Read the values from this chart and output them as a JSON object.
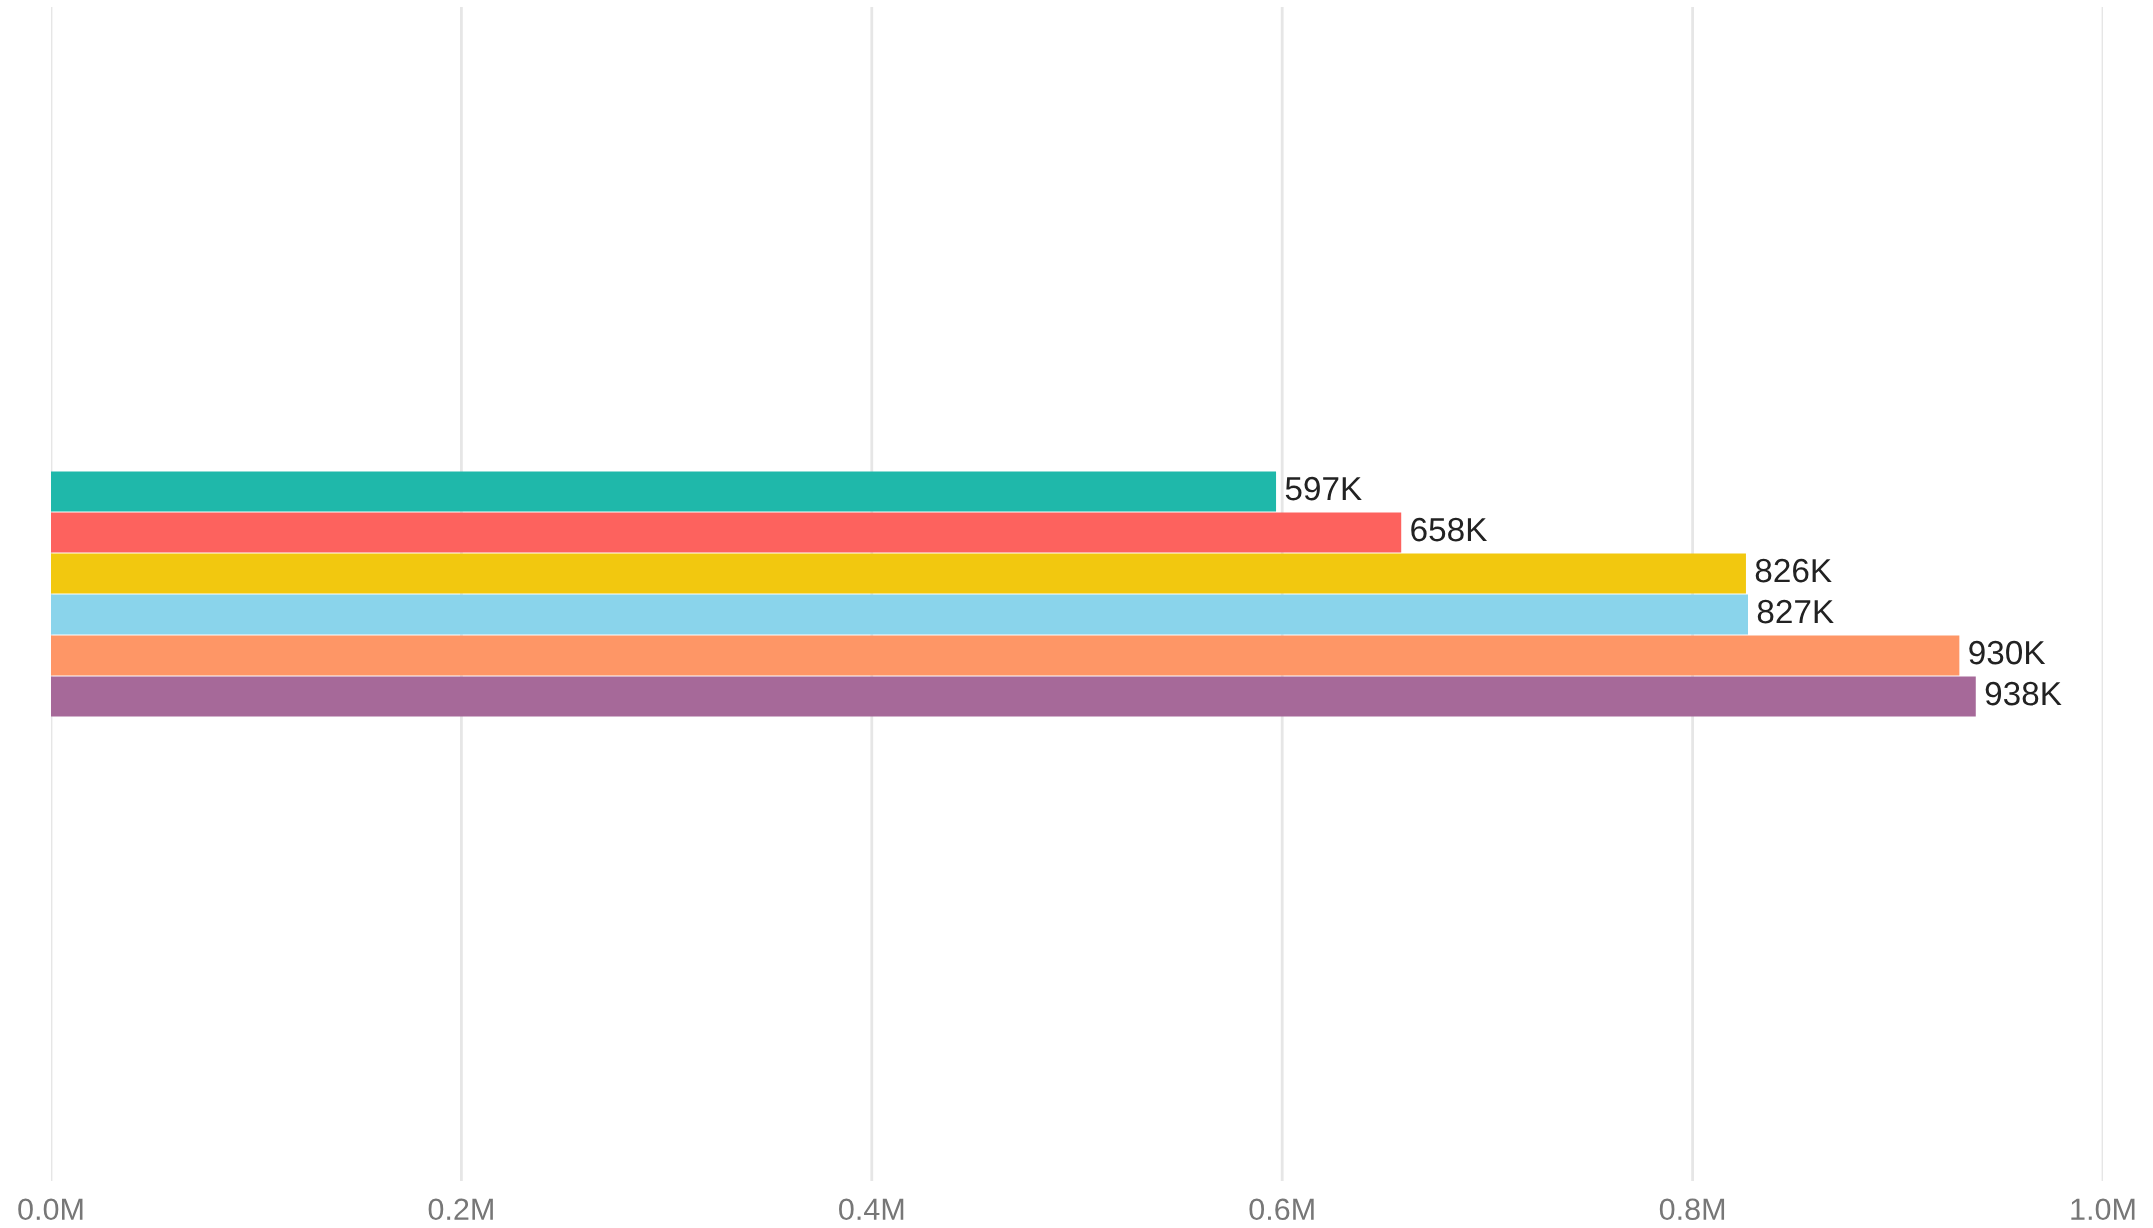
{
  "chart_data": {
    "type": "bar",
    "orientation": "horizontal",
    "categories": [
      null
    ],
    "series": [
      {
        "color": "#1fb8aa",
        "values": [
          597000
        ],
        "value_labels": [
          "597K"
        ]
      },
      {
        "color": "#fd625e",
        "values": [
          658000
        ],
        "value_labels": [
          "658K"
        ]
      },
      {
        "color": "#f2c80f",
        "values": [
          826000
        ],
        "value_labels": [
          "826K"
        ]
      },
      {
        "color": "#8ad4eb",
        "values": [
          827000
        ],
        "value_labels": [
          "827K"
        ]
      },
      {
        "color": "#fe9666",
        "values": [
          930000
        ],
        "value_labels": [
          "930K"
        ]
      },
      {
        "color": "#a66999",
        "values": [
          938000
        ],
        "value_labels": [
          "938K"
        ]
      }
    ],
    "xlim": [
      0,
      1000000
    ],
    "xticks": [
      {
        "value": 0,
        "label": "0.0M"
      },
      {
        "value": 200000,
        "label": "0.2M"
      },
      {
        "value": 400000,
        "label": "0.4M"
      },
      {
        "value": 600000,
        "label": "0.6M"
      },
      {
        "value": 800000,
        "label": "0.8M"
      },
      {
        "value": 1000000,
        "label": "1.0M"
      }
    ],
    "grid": "x"
  }
}
